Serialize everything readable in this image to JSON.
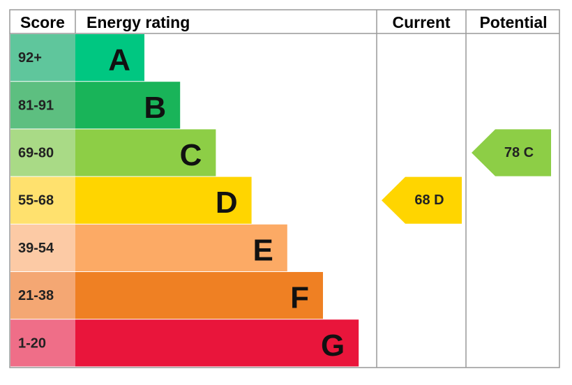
{
  "header": {
    "score": "Score",
    "rating": "Energy rating",
    "current": "Current",
    "potential": "Potential"
  },
  "bands": [
    {
      "score": "92+",
      "letter": "A",
      "color": "#00c781",
      "score_color": "#5fc69c"
    },
    {
      "score": "81-91",
      "letter": "B",
      "color": "#19b459",
      "score_color": "#5dbf80"
    },
    {
      "score": "69-80",
      "letter": "C",
      "color": "#8dce46",
      "score_color": "#a9da86"
    },
    {
      "score": "55-68",
      "letter": "D",
      "color": "#ffd500",
      "score_color": "#ffe16e"
    },
    {
      "score": "39-54",
      "letter": "E",
      "color": "#fcaa65",
      "score_color": "#fccaa5"
    },
    {
      "score": "21-38",
      "letter": "F",
      "color": "#ef8023",
      "score_color": "#f4a773"
    },
    {
      "score": "1-20",
      "letter": "G",
      "color": "#e9153b",
      "score_color": "#ef6e88"
    }
  ],
  "current": {
    "label": "68 D",
    "color": "#ffd500"
  },
  "potential": {
    "label": "78 C",
    "color": "#8dce46"
  }
}
